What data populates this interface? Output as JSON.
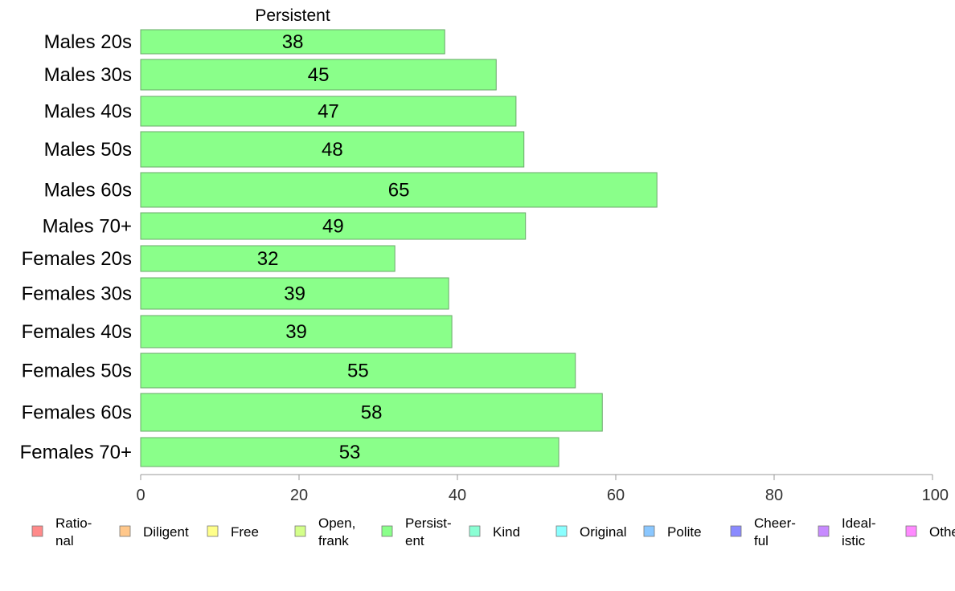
{
  "chart_data": {
    "type": "bar",
    "orientation": "horizontal",
    "title": "Persistent",
    "categories": [
      "Males 20s",
      "Males 30s",
      "Males 40s",
      "Males 50s",
      "Males 60s",
      "Males 70+",
      "Females 20s",
      "Females 30s",
      "Females 40s",
      "Females 50s",
      "Females 60s",
      "Females 70+"
    ],
    "series": [
      {
        "name": "Persistent",
        "values": [
          38.4,
          44.9,
          47.4,
          48.4,
          65.2,
          48.6,
          32.1,
          38.9,
          39.3,
          54.9,
          58.3,
          52.8
        ],
        "labels": [
          "38",
          "45",
          "47",
          "48",
          "65",
          "49",
          "32",
          "39",
          "39",
          "55",
          "58",
          "53"
        ],
        "color": "#8AFF8A"
      }
    ],
    "xlim": [
      0,
      100
    ],
    "xticks": [
      "0",
      "20",
      "40",
      "60",
      "80",
      "100"
    ],
    "grid": false,
    "legend_position": "bottom",
    "legend": [
      {
        "lines": [
          "Ratio-",
          "nal"
        ],
        "color": "#FF8A8A"
      },
      {
        "lines": [
          "Diligent"
        ],
        "color": "#FFC78A"
      },
      {
        "lines": [
          "Free"
        ],
        "color": "#FFFF8A"
      },
      {
        "lines": [
          "Open,",
          "frank"
        ],
        "color": "#D4FF8A"
      },
      {
        "lines": [
          "Persist-",
          "ent"
        ],
        "color": "#8AFF8A"
      },
      {
        "lines": [
          "Kind"
        ],
        "color": "#8AFFD4"
      },
      {
        "lines": [
          "Original"
        ],
        "color": "#8AFFFF"
      },
      {
        "lines": [
          "Polite"
        ],
        "color": "#8AC7FF"
      },
      {
        "lines": [
          "Cheer-",
          "ful"
        ],
        "color": "#8A8AFF"
      },
      {
        "lines": [
          "Ideal-",
          "istic"
        ],
        "color": "#C78AFF"
      },
      {
        "lines": [
          "Other"
        ],
        "color": "#FF8AFF"
      }
    ]
  }
}
